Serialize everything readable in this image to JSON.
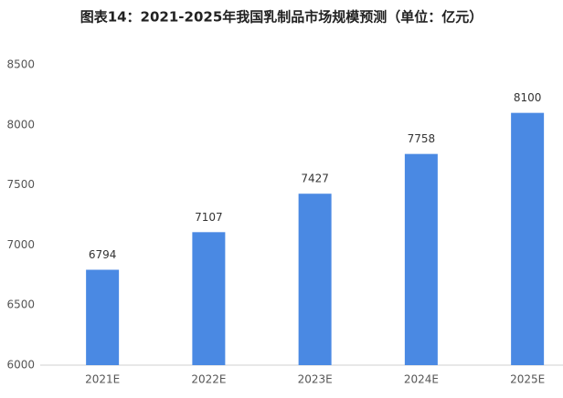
{
  "chart_data": {
    "type": "bar",
    "title": "图表14：2021-2025年我国乳制品市场规模预测（单位：亿元）",
    "categories": [
      "2021E",
      "2022E",
      "2023E",
      "2024E",
      "2025E"
    ],
    "values": [
      6794,
      7107,
      7427,
      7758,
      8100
    ],
    "color": "#4a89e3",
    "ylim": [
      6000,
      8500
    ],
    "yticks": [
      6000,
      6500,
      7000,
      7500,
      8000,
      8500
    ],
    "grid": false
  }
}
